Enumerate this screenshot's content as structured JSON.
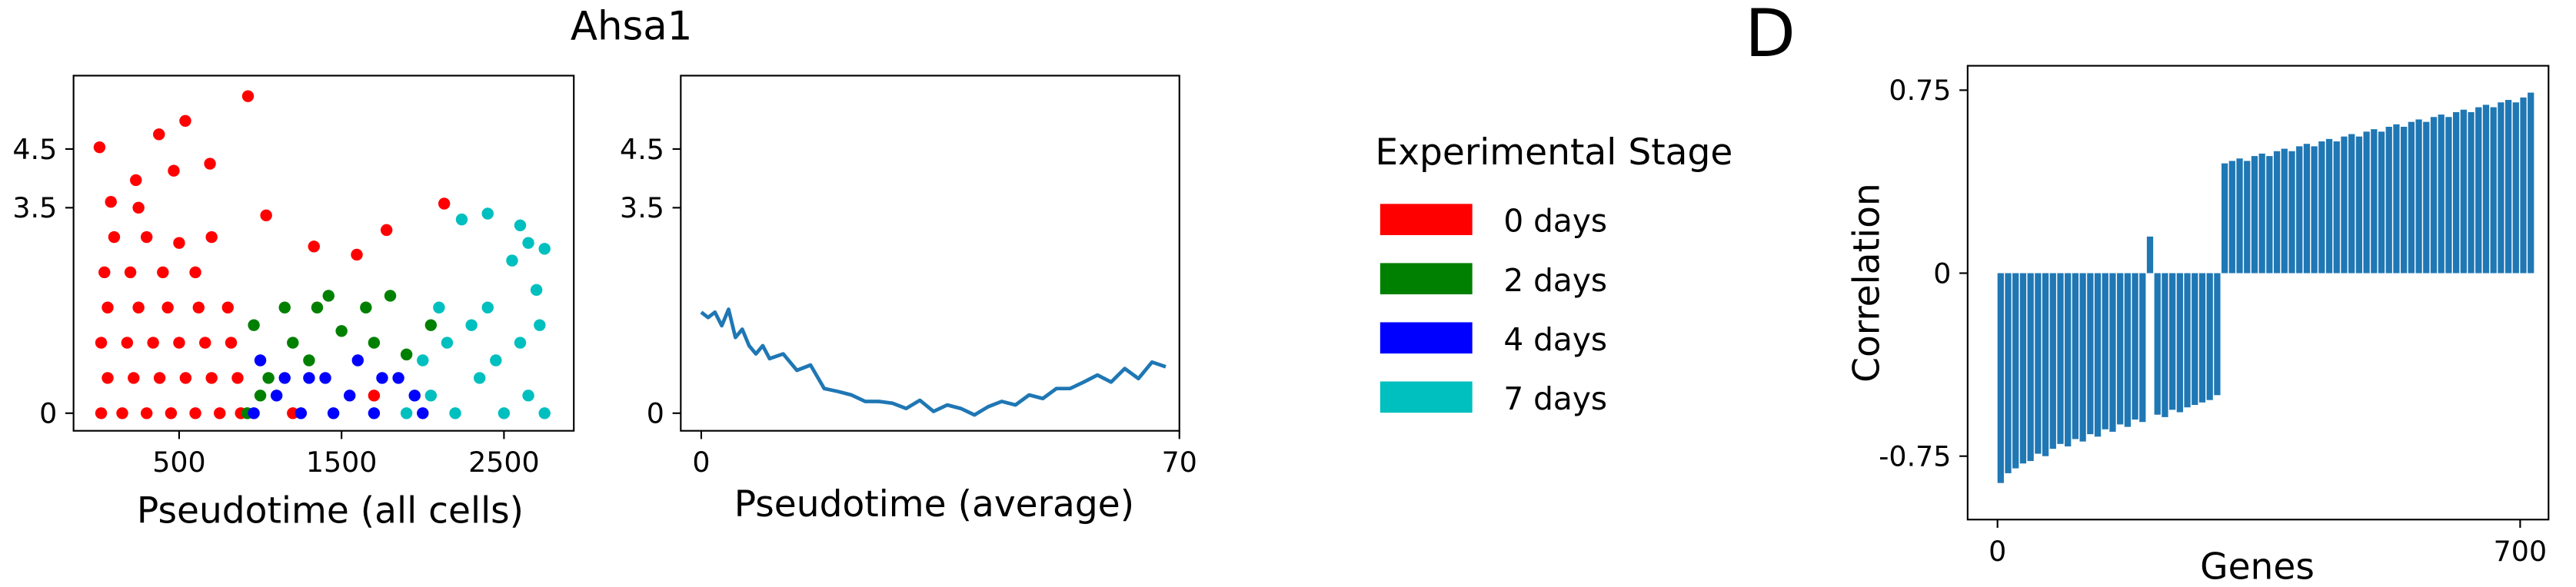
{
  "title": "Ahsa1",
  "panel_label": "D",
  "chart_data": [
    {
      "type": "scatter",
      "xlabel": "Pseudotime (all cells)",
      "legend_title": "Experimental Stage",
      "xlim": [
        -150,
        2930
      ],
      "ylim": [
        -0.3,
        5.75
      ],
      "xticks": [
        500,
        1500,
        2500
      ],
      "yticks": [
        0,
        3.5,
        4.5
      ],
      "series": [
        {
          "name": "0 days",
          "color": "#ff0000",
          "x": [
            20,
            150,
            300,
            450,
            600,
            750,
            880,
            60,
            220,
            380,
            540,
            700,
            860,
            20,
            180,
            340,
            500,
            660,
            820,
            60,
            250,
            430,
            620,
            800,
            40,
            200,
            400,
            600,
            100,
            300,
            500,
            700,
            80,
            250,
            1200,
            1700,
            1777,
            2132,
            1036,
            1330,
            1594,
            924,
            538,
            376,
            10,
            690,
            467,
            234
          ],
          "y": [
            0,
            0,
            0,
            0,
            0,
            0,
            0,
            0.6,
            0.6,
            0.6,
            0.6,
            0.6,
            0.6,
            1.2,
            1.2,
            1.2,
            1.2,
            1.2,
            1.2,
            1.8,
            1.8,
            1.8,
            1.8,
            1.8,
            2.4,
            2.4,
            2.4,
            2.4,
            3.0,
            3.0,
            2.9,
            3.0,
            3.6,
            3.5,
            0,
            0.3,
            3.12,
            3.57,
            3.37,
            2.84,
            2.7,
            5.4,
            4.98,
            4.75,
            4.53,
            4.25,
            4.13,
            3.97
          ]
        },
        {
          "name": "2 days",
          "color": "#008000",
          "x": [
            920,
            1050,
            1200,
            1150,
            1350,
            1500,
            1650,
            1000,
            1300,
            1700,
            1900,
            2050,
            1420,
            1800,
            960
          ],
          "y": [
            0,
            0.6,
            1.2,
            1.8,
            1.8,
            1.4,
            1.8,
            0.3,
            0.9,
            1.2,
            1.0,
            1.5,
            2.0,
            2.0,
            1.5
          ]
        },
        {
          "name": "4 days",
          "color": "#0000ff",
          "x": [
            960,
            1100,
            1250,
            1400,
            1550,
            1700,
            1850,
            1000,
            1300,
            1600,
            1950,
            1150,
            1450,
            1750,
            2000
          ],
          "y": [
            0,
            0.3,
            0,
            0.6,
            0.3,
            0,
            0.6,
            0.9,
            0.6,
            0.9,
            0.3,
            0.6,
            0,
            0.6,
            0
          ]
        },
        {
          "name": "7 days",
          "color": "#00bfbf",
          "x": [
            1900,
            2050,
            2200,
            2350,
            2500,
            2650,
            2750,
            2000,
            2150,
            2300,
            2450,
            2600,
            2720,
            2100,
            2400,
            2700,
            2550,
            2650,
            2750,
            2400,
            2600,
            2240
          ],
          "y": [
            0,
            0.3,
            0,
            0.6,
            0,
            0.3,
            0,
            0.9,
            1.2,
            1.5,
            0.9,
            1.2,
            1.5,
            1.8,
            1.8,
            2.1,
            2.6,
            2.9,
            2.8,
            3.4,
            3.2,
            3.3
          ]
        }
      ]
    },
    {
      "type": "line",
      "xlabel": "Pseudotime (average)",
      "xlim": [
        -3,
        70
      ],
      "ylim": [
        -0.3,
        5.75
      ],
      "xticks": [
        0,
        70
      ],
      "yticks": [
        0,
        3.5,
        4.5
      ],
      "x": [
        0,
        1,
        2,
        3,
        4,
        5,
        6,
        7,
        8,
        9,
        10,
        12,
        14,
        16,
        18,
        20,
        22,
        24,
        26,
        28,
        30,
        32,
        34,
        36,
        38,
        40,
        42,
        44,
        46,
        48,
        50,
        52,
        54,
        56,
        58,
        60,
        62,
        64,
        66,
        68
      ],
      "series": [
        {
          "color": "#1f77b4",
          "values": [
            1.72,
            1.63,
            1.72,
            1.49,
            1.77,
            1.29,
            1.43,
            1.15,
            1.01,
            1.15,
            0.93,
            1.01,
            0.73,
            0.82,
            0.42,
            0.37,
            0.31,
            0.2,
            0.2,
            0.17,
            0.08,
            0.22,
            0.03,
            0.14,
            0.08,
            -0.03,
            0.11,
            0.2,
            0.14,
            0.31,
            0.25,
            0.42,
            0.42,
            0.53,
            0.65,
            0.53,
            0.76,
            0.59,
            0.87,
            0.79
          ]
        }
      ]
    },
    {
      "type": "bar",
      "xlabel": "Genes",
      "ylabel": "Correlation",
      "xlim": [
        -40,
        738
      ],
      "ylim": [
        -1.01,
        0.85
      ],
      "xticks": [
        0,
        700
      ],
      "yticks": [
        -0.75,
        0,
        0.75
      ],
      "x": [
        0,
        10,
        20,
        30,
        40,
        50,
        60,
        70,
        80,
        90,
        100,
        110,
        120,
        130,
        140,
        150,
        160,
        170,
        180,
        190,
        200,
        210,
        220,
        230,
        240,
        250,
        260,
        270,
        280,
        290,
        300,
        310,
        320,
        330,
        340,
        350,
        360,
        370,
        380,
        390,
        400,
        410,
        420,
        430,
        440,
        450,
        460,
        470,
        480,
        490,
        500,
        510,
        520,
        530,
        540,
        550,
        560,
        570,
        580,
        590,
        600,
        610,
        620,
        630,
        640,
        650,
        660,
        670,
        680,
        690,
        700,
        710
      ],
      "color": "#1f77b4",
      "values": [
        -0.86,
        -0.82,
        -0.8,
        -0.78,
        -0.77,
        -0.74,
        -0.75,
        -0.72,
        -0.7,
        -0.71,
        -0.68,
        -0.69,
        -0.66,
        -0.67,
        -0.64,
        -0.65,
        -0.62,
        -0.63,
        -0.6,
        -0.61,
        0.15,
        -0.58,
        -0.59,
        -0.56,
        -0.57,
        -0.55,
        -0.54,
        -0.53,
        -0.52,
        -0.5,
        0.45,
        0.46,
        0.47,
        0.46,
        0.48,
        0.49,
        0.48,
        0.5,
        0.51,
        0.5,
        0.52,
        0.53,
        0.52,
        0.54,
        0.55,
        0.54,
        0.56,
        0.57,
        0.56,
        0.58,
        0.59,
        0.58,
        0.6,
        0.61,
        0.6,
        0.62,
        0.63,
        0.62,
        0.64,
        0.65,
        0.64,
        0.66,
        0.67,
        0.66,
        0.68,
        0.69,
        0.68,
        0.7,
        0.71,
        0.7,
        0.72,
        0.74
      ]
    }
  ]
}
